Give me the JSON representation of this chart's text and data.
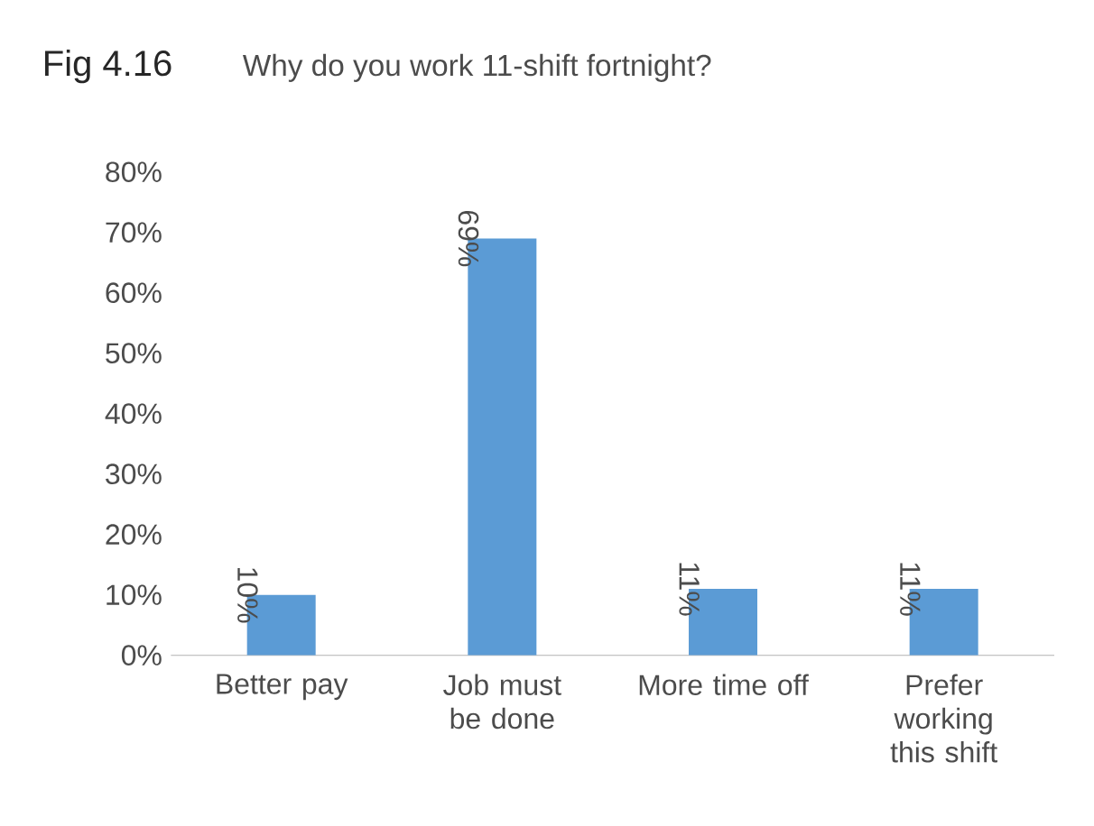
{
  "chart_data": {
    "type": "bar",
    "title": "Fig 4.16",
    "subtitle": "Why do you work 11-shift fortnight?",
    "categories": [
      "Better pay",
      "Job must be done",
      "More time off",
      "Prefer working this shift"
    ],
    "values": [
      10,
      69,
      11,
      11
    ],
    "color": "#5b9bd5",
    "value_labels": [
      "10%",
      "69%",
      "11%",
      "11%"
    ],
    "ylim": [
      0,
      80
    ],
    "yticks": [
      {
        "value": 0,
        "label": "0%"
      },
      {
        "value": 10,
        "label": "10%"
      },
      {
        "value": 20,
        "label": "20%"
      },
      {
        "value": 30,
        "label": "30%"
      },
      {
        "value": 40,
        "label": "40%"
      },
      {
        "value": 50,
        "label": "50%"
      },
      {
        "value": 60,
        "label": "60%"
      },
      {
        "value": 70,
        "label": "70%"
      },
      {
        "value": 80,
        "label": "80%"
      }
    ],
    "grid": false
  }
}
